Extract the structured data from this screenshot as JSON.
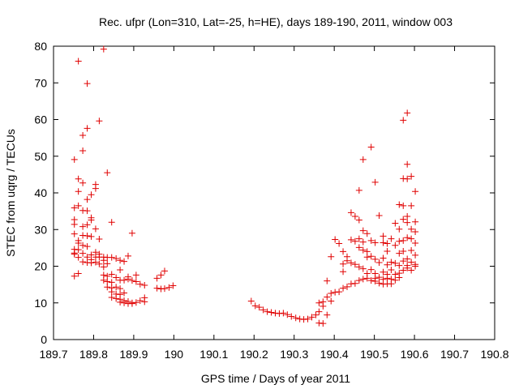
{
  "chart_data": {
    "type": "scatter",
    "title": "Rec. ufpr (Lon=310, Lat=-25, h=HE), days 189-190, 2011, window 003",
    "xlabel": "GPS time / Days of year 2011",
    "ylabel": "STEC from uqrg / TECUs",
    "xlim": [
      189.7,
      190.8
    ],
    "ylim": [
      0,
      80
    ],
    "grid": false,
    "marker": "+",
    "color": "#e00000",
    "xticks": [
      "189.7",
      "189.8",
      "189.9",
      "190",
      "190.1",
      "190.2",
      "190.3",
      "190.4",
      "190.5",
      "190.6",
      "190.7",
      "190.8"
    ],
    "yticks": [
      "0",
      "10",
      "20",
      "30",
      "40",
      "50",
      "60",
      "70",
      "80"
    ],
    "points": [
      [
        189.752,
        49.1
      ],
      [
        189.752,
        35.9
      ],
      [
        189.752,
        32.7
      ],
      [
        189.752,
        31.4
      ],
      [
        189.752,
        28.8
      ],
      [
        189.752,
        24.6
      ],
      [
        189.752,
        23.6
      ],
      [
        189.752,
        23.3
      ],
      [
        189.752,
        17.3
      ],
      [
        189.762,
        75.9
      ],
      [
        189.762,
        43.8
      ],
      [
        189.762,
        40.4
      ],
      [
        189.762,
        36.5
      ],
      [
        189.762,
        27.0
      ],
      [
        189.762,
        26.3
      ],
      [
        189.762,
        24.5
      ],
      [
        189.762,
        22.4
      ],
      [
        189.762,
        18.0
      ],
      [
        189.773,
        55.7
      ],
      [
        189.773,
        51.5
      ],
      [
        189.773,
        42.7
      ],
      [
        189.773,
        35.2
      ],
      [
        189.773,
        30.8
      ],
      [
        189.773,
        28.4
      ],
      [
        189.773,
        25.7
      ],
      [
        189.773,
        23.5
      ],
      [
        189.773,
        21.2
      ],
      [
        189.784,
        69.8
      ],
      [
        189.784,
        57.6
      ],
      [
        189.784,
        38.2
      ],
      [
        189.784,
        35.1
      ],
      [
        189.784,
        31.3
      ],
      [
        189.784,
        28.3
      ],
      [
        189.784,
        25.4
      ],
      [
        189.784,
        22.5
      ],
      [
        189.784,
        21.0
      ],
      [
        189.794,
        39.5
      ],
      [
        189.794,
        33.2
      ],
      [
        189.794,
        32.6
      ],
      [
        189.794,
        28.1
      ],
      [
        189.794,
        23.1
      ],
      [
        189.794,
        21.8
      ],
      [
        189.794,
        20.9
      ],
      [
        189.805,
        42.3
      ],
      [
        189.805,
        41.2
      ],
      [
        189.805,
        30.2
      ],
      [
        189.805,
        23.8
      ],
      [
        189.805,
        22.5
      ],
      [
        189.805,
        21.1
      ],
      [
        189.814,
        59.6
      ],
      [
        189.814,
        27.4
      ],
      [
        189.814,
        23.3
      ],
      [
        189.814,
        22.5
      ],
      [
        189.814,
        20.6
      ],
      [
        189.825,
        79.2
      ],
      [
        189.825,
        22.5
      ],
      [
        189.825,
        21.6
      ],
      [
        189.825,
        19.8
      ],
      [
        189.825,
        17.6
      ],
      [
        189.825,
        16.2
      ],
      [
        189.834,
        45.5
      ],
      [
        189.834,
        22.4
      ],
      [
        189.834,
        20.7
      ],
      [
        189.834,
        17.3
      ],
      [
        189.834,
        15.8
      ],
      [
        189.834,
        14.3
      ],
      [
        189.845,
        32.0
      ],
      [
        189.845,
        22.4
      ],
      [
        189.845,
        17.8
      ],
      [
        189.845,
        15.6
      ],
      [
        189.845,
        14.1
      ],
      [
        189.845,
        13.0
      ],
      [
        189.845,
        11.5
      ],
      [
        189.856,
        22.1
      ],
      [
        189.856,
        16.9
      ],
      [
        189.856,
        14.3
      ],
      [
        189.856,
        12.4
      ],
      [
        189.856,
        11.2
      ],
      [
        189.866,
        21.6
      ],
      [
        189.866,
        19.0
      ],
      [
        189.866,
        16.2
      ],
      [
        189.866,
        13.9
      ],
      [
        189.866,
        12.3
      ],
      [
        189.866,
        11.0
      ],
      [
        189.866,
        10.2
      ],
      [
        189.876,
        21.3
      ],
      [
        189.876,
        16.2
      ],
      [
        189.876,
        12.7
      ],
      [
        189.876,
        10.6
      ],
      [
        189.876,
        10.0
      ],
      [
        189.886,
        22.8
      ],
      [
        189.886,
        17.1
      ],
      [
        189.886,
        16.5
      ],
      [
        189.886,
        10.4
      ],
      [
        189.886,
        9.8
      ],
      [
        189.896,
        29.0
      ],
      [
        189.896,
        16.1
      ],
      [
        189.896,
        10.0
      ],
      [
        189.896,
        9.8
      ],
      [
        189.906,
        17.6
      ],
      [
        189.906,
        15.8
      ],
      [
        189.906,
        10.1
      ],
      [
        189.916,
        15.1
      ],
      [
        189.916,
        10.6
      ],
      [
        189.927,
        14.8
      ],
      [
        189.927,
        11.4
      ],
      [
        189.927,
        10.3
      ],
      [
        189.958,
        16.7
      ],
      [
        189.958,
        14.0
      ],
      [
        189.968,
        17.6
      ],
      [
        189.968,
        13.8
      ],
      [
        189.977,
        18.7
      ],
      [
        189.977,
        13.9
      ],
      [
        189.988,
        14.2
      ],
      [
        189.998,
        14.7
      ],
      [
        190.193,
        10.5
      ],
      [
        190.203,
        9.2
      ],
      [
        190.213,
        8.8
      ],
      [
        190.223,
        8.1
      ],
      [
        190.233,
        7.6
      ],
      [
        190.243,
        7.4
      ],
      [
        190.253,
        7.2
      ],
      [
        190.263,
        7.1
      ],
      [
        190.273,
        7.2
      ],
      [
        190.283,
        6.8
      ],
      [
        190.293,
        6.3
      ],
      [
        190.304,
        5.9
      ],
      [
        190.314,
        5.6
      ],
      [
        190.324,
        5.5
      ],
      [
        190.334,
        5.6
      ],
      [
        190.344,
        6.1
      ],
      [
        190.354,
        6.7
      ],
      [
        190.362,
        10.0
      ],
      [
        190.362,
        7.6
      ],
      [
        190.362,
        4.5
      ],
      [
        190.372,
        10.3
      ],
      [
        190.372,
        9.1
      ],
      [
        190.372,
        4.4
      ],
      [
        190.382,
        16.0
      ],
      [
        190.382,
        11.6
      ],
      [
        190.382,
        6.7
      ],
      [
        190.392,
        22.6
      ],
      [
        190.392,
        12.6
      ],
      [
        190.392,
        10.5
      ],
      [
        190.402,
        27.3
      ],
      [
        190.402,
        12.9
      ],
      [
        190.412,
        26.2
      ],
      [
        190.412,
        13.0
      ],
      [
        190.422,
        24.0
      ],
      [
        190.422,
        20.6
      ],
      [
        190.422,
        18.5
      ],
      [
        190.422,
        14.0
      ],
      [
        190.432,
        22.6
      ],
      [
        190.432,
        21.5
      ],
      [
        190.432,
        14.4
      ],
      [
        190.442,
        34.6
      ],
      [
        190.442,
        27.2
      ],
      [
        190.442,
        20.9
      ],
      [
        190.442,
        15.2
      ],
      [
        190.452,
        33.6
      ],
      [
        190.452,
        26.8
      ],
      [
        190.452,
        20.5
      ],
      [
        190.452,
        15.3
      ],
      [
        190.462,
        40.7
      ],
      [
        190.462,
        32.6
      ],
      [
        190.462,
        27.5
      ],
      [
        190.462,
        25.1
      ],
      [
        190.462,
        19.8
      ],
      [
        190.462,
        16.1
      ],
      [
        190.472,
        49.1
      ],
      [
        190.472,
        29.7
      ],
      [
        190.472,
        26.6
      ],
      [
        190.472,
        24.4
      ],
      [
        190.472,
        19.3
      ],
      [
        190.472,
        16.5
      ],
      [
        190.482,
        28.9
      ],
      [
        190.482,
        24.0
      ],
      [
        190.482,
        22.5
      ],
      [
        190.482,
        18.0
      ],
      [
        190.482,
        16.7
      ],
      [
        190.492,
        52.5
      ],
      [
        190.492,
        27.0
      ],
      [
        190.492,
        22.7
      ],
      [
        190.492,
        19.1
      ],
      [
        190.492,
        16.1
      ],
      [
        190.502,
        42.9
      ],
      [
        190.502,
        26.4
      ],
      [
        190.502,
        21.9
      ],
      [
        190.502,
        18.0
      ],
      [
        190.502,
        16.7
      ],
      [
        190.502,
        15.9
      ],
      [
        190.512,
        33.8
      ],
      [
        190.512,
        21.0
      ],
      [
        190.512,
        17.0
      ],
      [
        190.512,
        15.4
      ],
      [
        190.522,
        28.2
      ],
      [
        190.522,
        26.4
      ],
      [
        190.522,
        22.2
      ],
      [
        190.522,
        18.4
      ],
      [
        190.522,
        16.4
      ],
      [
        190.522,
        15.1
      ],
      [
        190.532,
        26.2
      ],
      [
        190.532,
        24.1
      ],
      [
        190.532,
        20.4
      ],
      [
        190.532,
        17.8
      ],
      [
        190.532,
        16.7
      ],
      [
        190.532,
        15.2
      ],
      [
        190.542,
        27.5
      ],
      [
        190.542,
        21.1
      ],
      [
        190.542,
        19.0
      ],
      [
        190.542,
        16.5
      ],
      [
        190.542,
        15.2
      ],
      [
        190.552,
        31.7
      ],
      [
        190.552,
        25.7
      ],
      [
        190.552,
        20.8
      ],
      [
        190.552,
        17.8
      ],
      [
        190.552,
        16.2
      ],
      [
        190.562,
        36.8
      ],
      [
        190.562,
        30.1
      ],
      [
        190.562,
        26.8
      ],
      [
        190.562,
        23.5
      ],
      [
        190.562,
        20.2
      ],
      [
        190.562,
        18.1
      ],
      [
        190.562,
        16.9
      ],
      [
        190.572,
        59.8
      ],
      [
        190.572,
        43.9
      ],
      [
        190.572,
        36.5
      ],
      [
        190.572,
        32.8
      ],
      [
        190.572,
        27.0
      ],
      [
        190.572,
        24.1
      ],
      [
        190.572,
        21.4
      ],
      [
        190.572,
        18.9
      ],
      [
        190.582,
        61.8
      ],
      [
        190.582,
        47.8
      ],
      [
        190.582,
        43.8
      ],
      [
        190.582,
        33.6
      ],
      [
        190.582,
        31.9
      ],
      [
        190.582,
        27.8
      ],
      [
        190.582,
        22.0
      ],
      [
        190.582,
        20.2
      ],
      [
        190.582,
        19.5
      ],
      [
        190.592,
        44.5
      ],
      [
        190.592,
        36.5
      ],
      [
        190.592,
        30.1
      ],
      [
        190.592,
        27.5
      ],
      [
        190.592,
        24.3
      ],
      [
        190.592,
        21.1
      ],
      [
        190.592,
        18.9
      ],
      [
        190.602,
        40.4
      ],
      [
        190.602,
        32.1
      ],
      [
        190.602,
        29.4
      ],
      [
        190.602,
        26.3
      ],
      [
        190.602,
        23.0
      ],
      [
        190.602,
        20.5
      ],
      [
        190.602,
        20.0
      ]
    ]
  }
}
